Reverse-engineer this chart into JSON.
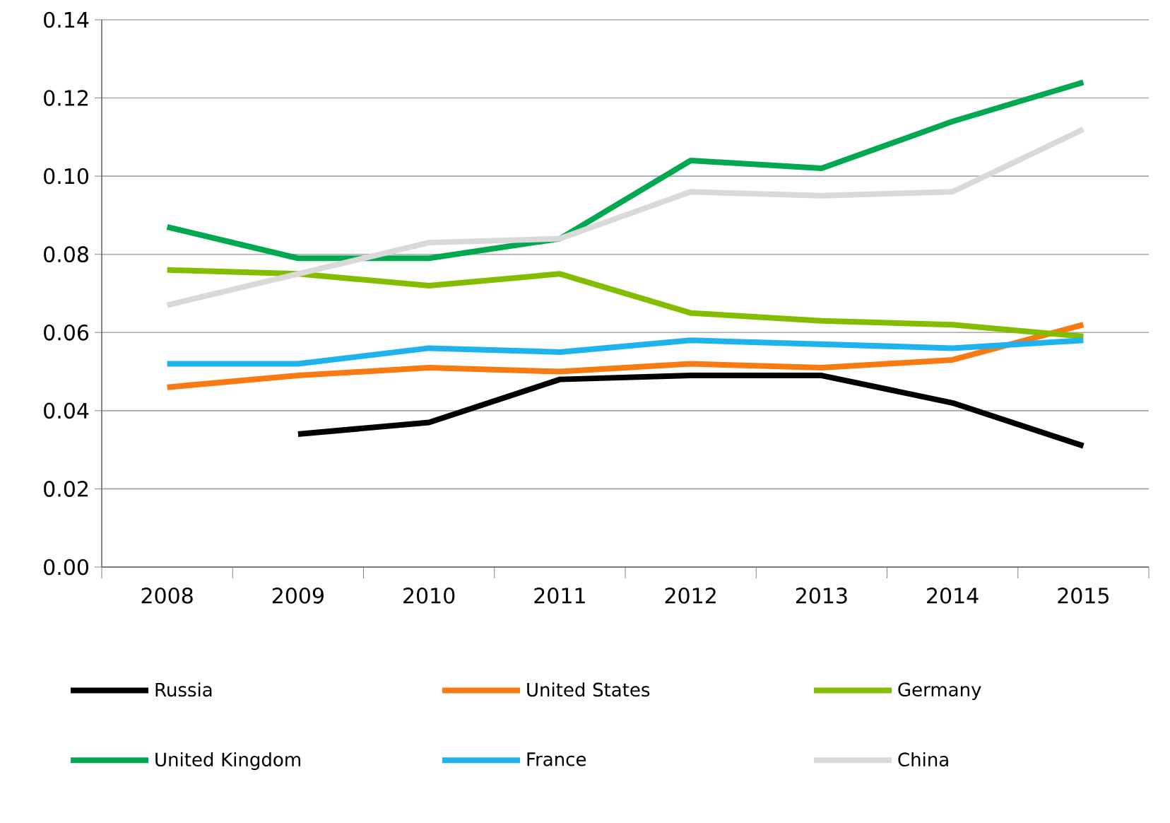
{
  "chart_data": {
    "type": "line",
    "categories": [
      "2008",
      "2009",
      "2010",
      "2011",
      "2012",
      "2013",
      "2014",
      "2015"
    ],
    "series": [
      {
        "name": "Russia",
        "color": "#000000",
        "values": [
          null,
          0.034,
          0.037,
          0.048,
          0.049,
          0.049,
          0.042,
          0.031
        ]
      },
      {
        "name": "United States",
        "color": "#f97a12",
        "values": [
          0.046,
          0.049,
          0.051,
          0.05,
          0.052,
          0.051,
          0.053,
          0.062
        ]
      },
      {
        "name": "Germany",
        "color": "#84bd00",
        "values": [
          0.076,
          0.075,
          0.072,
          0.075,
          0.065,
          0.063,
          0.062,
          0.059
        ]
      },
      {
        "name": "United Kingdom",
        "color": "#00a94f",
        "values": [
          0.087,
          0.079,
          0.079,
          0.084,
          0.104,
          0.102,
          0.114,
          0.124
        ]
      },
      {
        "name": "France",
        "color": "#1eb2ef",
        "values": [
          0.052,
          0.052,
          0.056,
          0.055,
          0.058,
          0.057,
          0.056,
          0.058
        ]
      },
      {
        "name": "China",
        "color": "#d9d9d9",
        "values": [
          0.067,
          0.075,
          0.083,
          0.084,
          0.096,
          0.095,
          0.096,
          0.112
        ]
      }
    ],
    "ylim": [
      0,
      0.14
    ],
    "yticks": [
      {
        "value": 0,
        "label": "0.00"
      },
      {
        "value": 0.02,
        "label": "0.02"
      },
      {
        "value": 0.04,
        "label": "0.04"
      },
      {
        "value": 0.06,
        "label": "0.06"
      },
      {
        "value": 0.08,
        "label": "0.08"
      },
      {
        "value": 0.1,
        "label": "0.10"
      },
      {
        "value": 0.12,
        "label": "0.12"
      },
      {
        "value": 0.14,
        "label": "0.14"
      }
    ],
    "grid": "y",
    "legend": "bottom",
    "marker": "none",
    "line_style": "solid"
  }
}
